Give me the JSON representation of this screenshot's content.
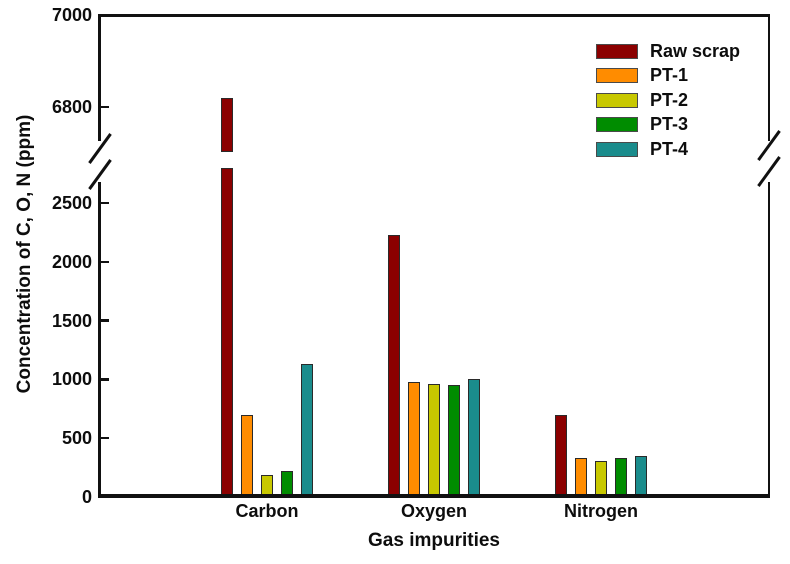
{
  "chart_data": {
    "type": "bar",
    "title": "",
    "xlabel": "Gas impurities",
    "ylabel": "Concentration of C, O, N (ppm)",
    "categories": [
      "Carbon",
      "Oxygen",
      "Nitrogen"
    ],
    "series": [
      {
        "name": "Raw scrap",
        "color": "#8B0000",
        "values": [
          6820,
          2230,
          700
        ]
      },
      {
        "name": "PT-1",
        "color": "#FF8C00",
        "values": [
          700,
          975,
          330
        ]
      },
      {
        "name": "PT-2",
        "color": "#C8C800",
        "values": [
          190,
          965,
          310
        ]
      },
      {
        "name": "PT-3",
        "color": "#008C00",
        "values": [
          220,
          950,
          330
        ]
      },
      {
        "name": "PT-4",
        "color": "#1A8C8C",
        "values": [
          1130,
          1000,
          345
        ]
      }
    ],
    "y_axis": {
      "lower_ticks": [
        0,
        500,
        1000,
        1500,
        2000,
        2500
      ],
      "upper_ticks": [
        6800,
        7000
      ],
      "lower_range": [
        0,
        2600
      ],
      "upper_range": [
        6800,
        7000
      ],
      "has_break": true
    },
    "legend_position": "top-right",
    "grid": false,
    "axis_color": "#111111",
    "background_color": "#ffffff"
  }
}
